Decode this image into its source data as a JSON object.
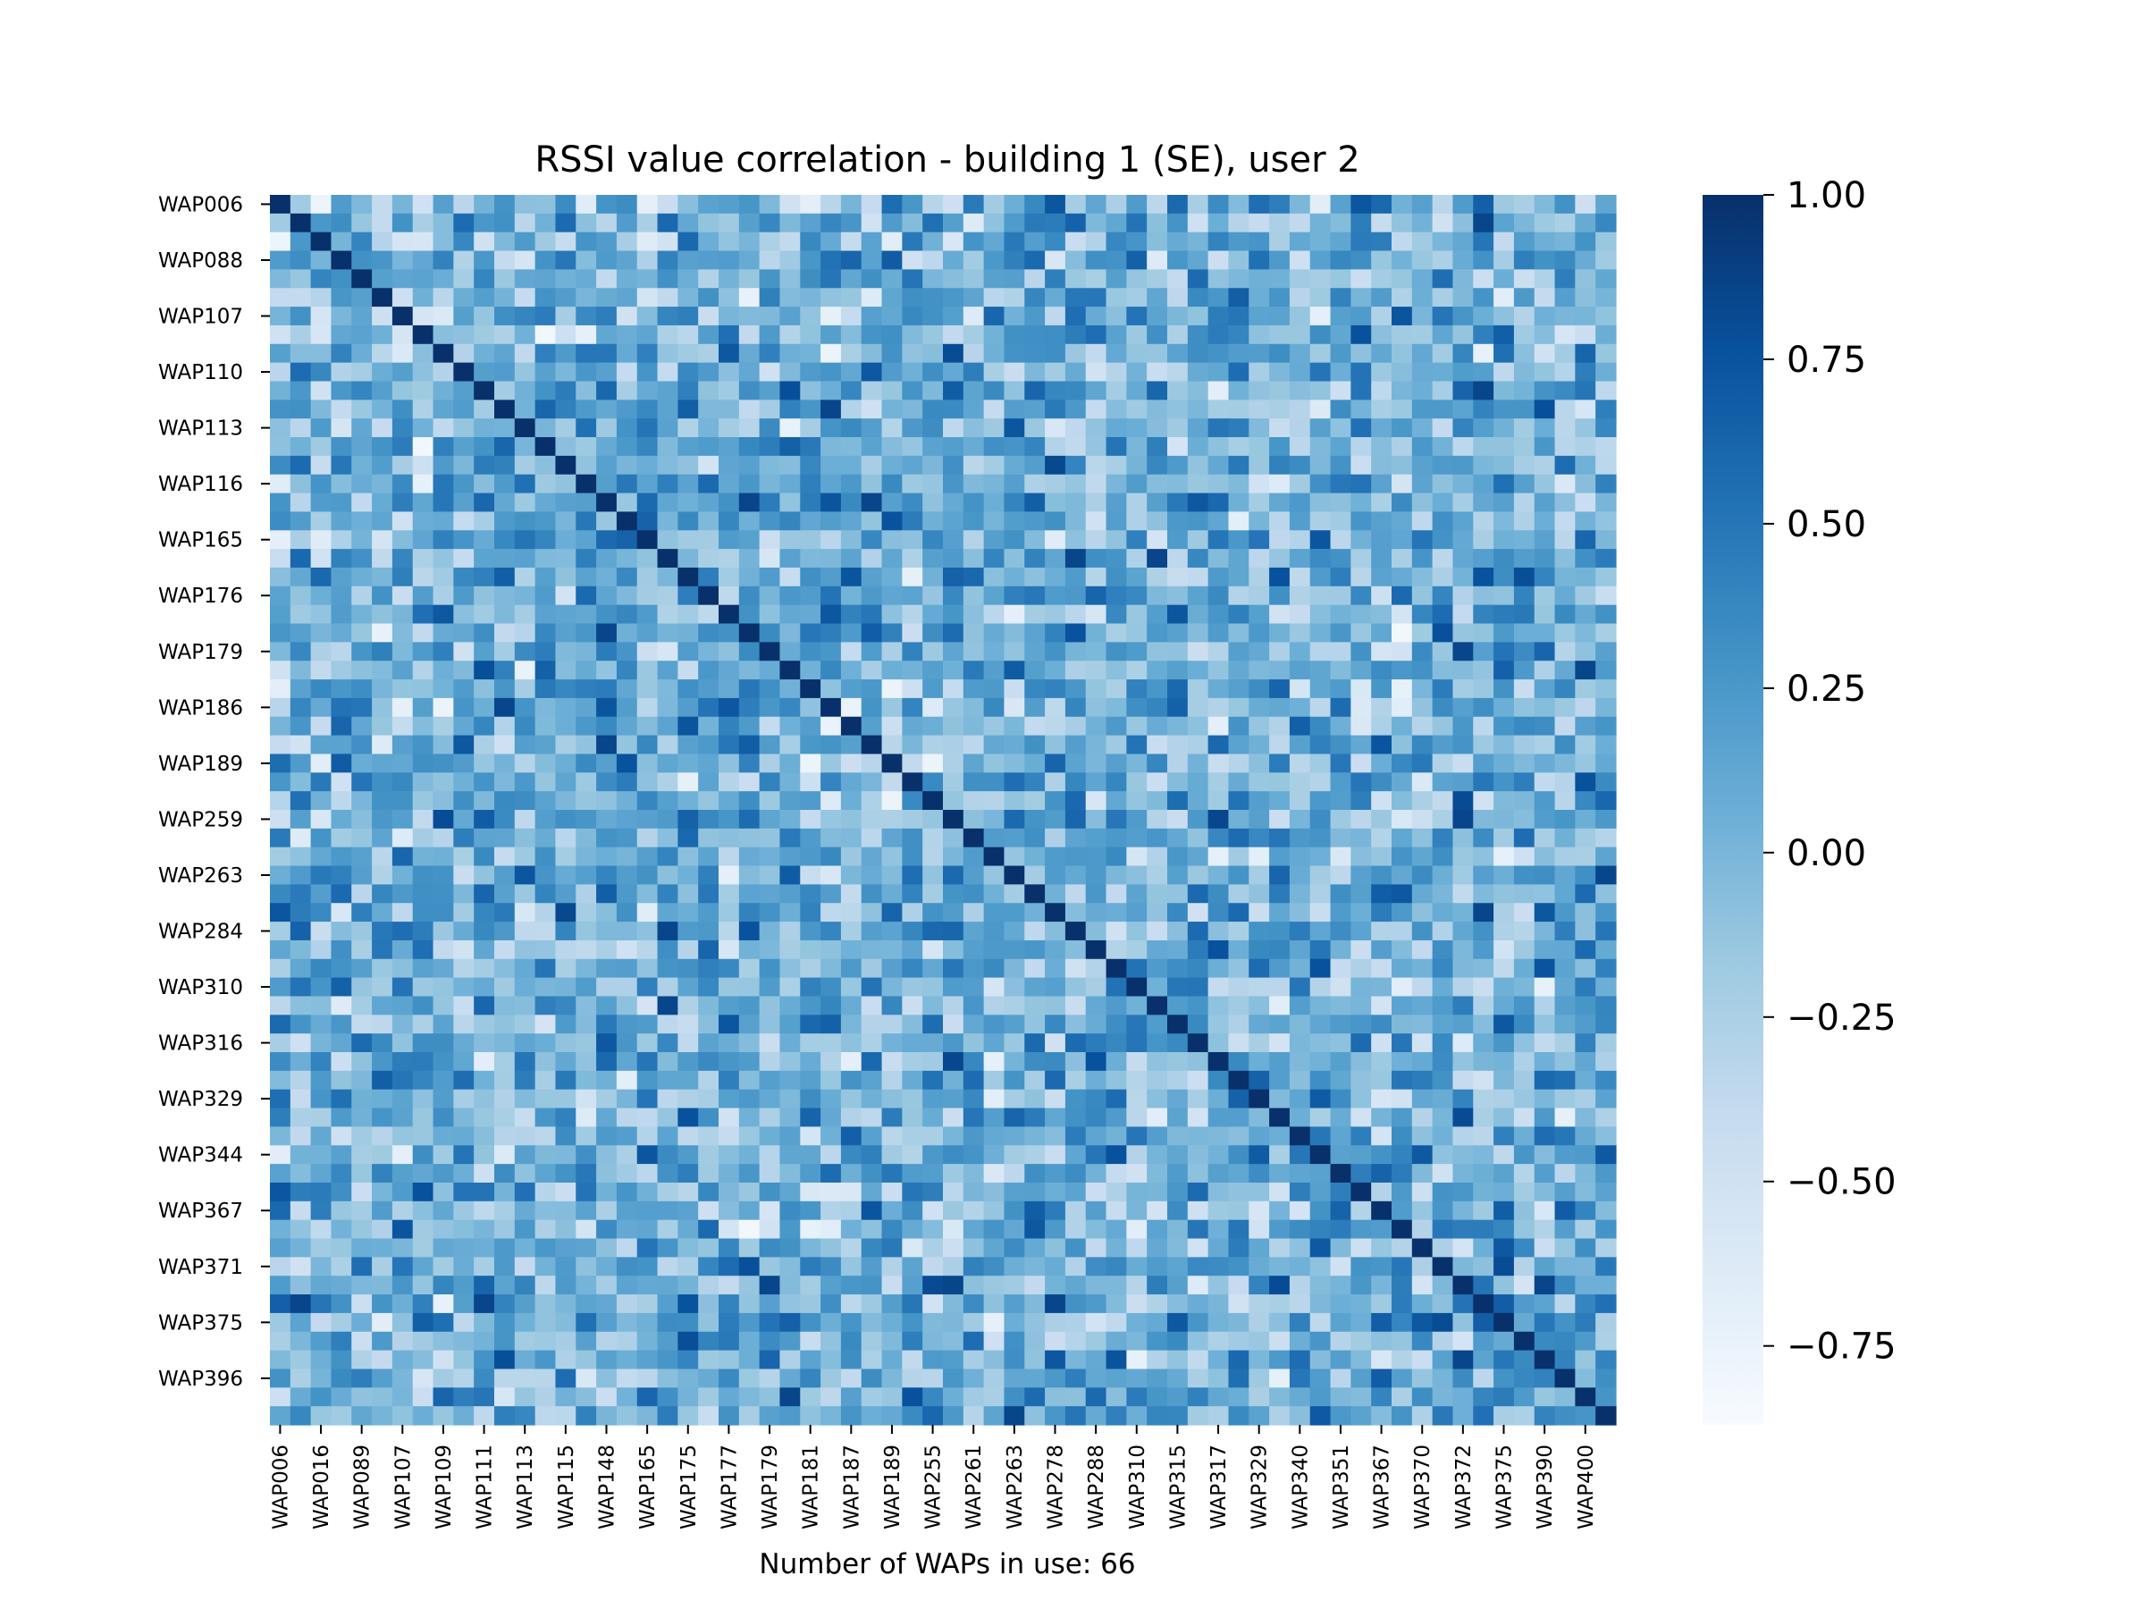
{
  "chart_data": {
    "type": "heatmap",
    "title": "RSSI value correlation - building 1 (SE), user 2",
    "xlabel": "Number of WAPs in use: 66",
    "ylabel": "",
    "matrix_size": 66,
    "colormap": "Blues",
    "value_range": [
      -0.87,
      1.0
    ],
    "y_tick_labels": [
      "WAP006",
      "WAP088",
      "WAP107",
      "WAP110",
      "WAP113",
      "WAP116",
      "WAP165",
      "WAP176",
      "WAP179",
      "WAP186",
      "WAP189",
      "WAP259",
      "WAP263",
      "WAP284",
      "WAP310",
      "WAP316",
      "WAP329",
      "WAP344",
      "WAP367",
      "WAP371",
      "WAP375",
      "WAP396"
    ],
    "y_tick_rows": [
      0,
      3,
      6,
      9,
      12,
      15,
      18,
      21,
      24,
      27,
      30,
      33,
      36,
      39,
      42,
      45,
      48,
      51,
      54,
      57,
      60,
      63
    ],
    "x_tick_labels": [
      "WAP006",
      "WAP016",
      "WAP089",
      "WAP107",
      "WAP109",
      "WAP111",
      "WAP113",
      "WAP115",
      "WAP148",
      "WAP165",
      "WAP175",
      "WAP177",
      "WAP179",
      "WAP181",
      "WAP187",
      "WAP189",
      "WAP255",
      "WAP261",
      "WAP263",
      "WAP278",
      "WAP288",
      "WAP310",
      "WAP315",
      "WAP317",
      "WAP329",
      "WAP340",
      "WAP351",
      "WAP367",
      "WAP370",
      "WAP372",
      "WAP375",
      "WAP390",
      "WAP400"
    ],
    "x_tick_cols": [
      0,
      2,
      4,
      6,
      8,
      10,
      12,
      14,
      16,
      18,
      20,
      22,
      24,
      26,
      28,
      30,
      32,
      34,
      36,
      38,
      40,
      42,
      44,
      46,
      48,
      50,
      52,
      54,
      56,
      58,
      60,
      62,
      64
    ],
    "colorbar": {
      "ticks": [
        1.0,
        0.75,
        0.5,
        0.25,
        0.0,
        -0.25,
        -0.5,
        -0.75
      ],
      "tick_labels": [
        "1.00",
        "0.75",
        "0.50",
        "0.25",
        "0.00",
        "−0.25",
        "−0.50",
        "−0.75"
      ]
    },
    "diagonal_value": 1.0,
    "seed": 20240517
  }
}
